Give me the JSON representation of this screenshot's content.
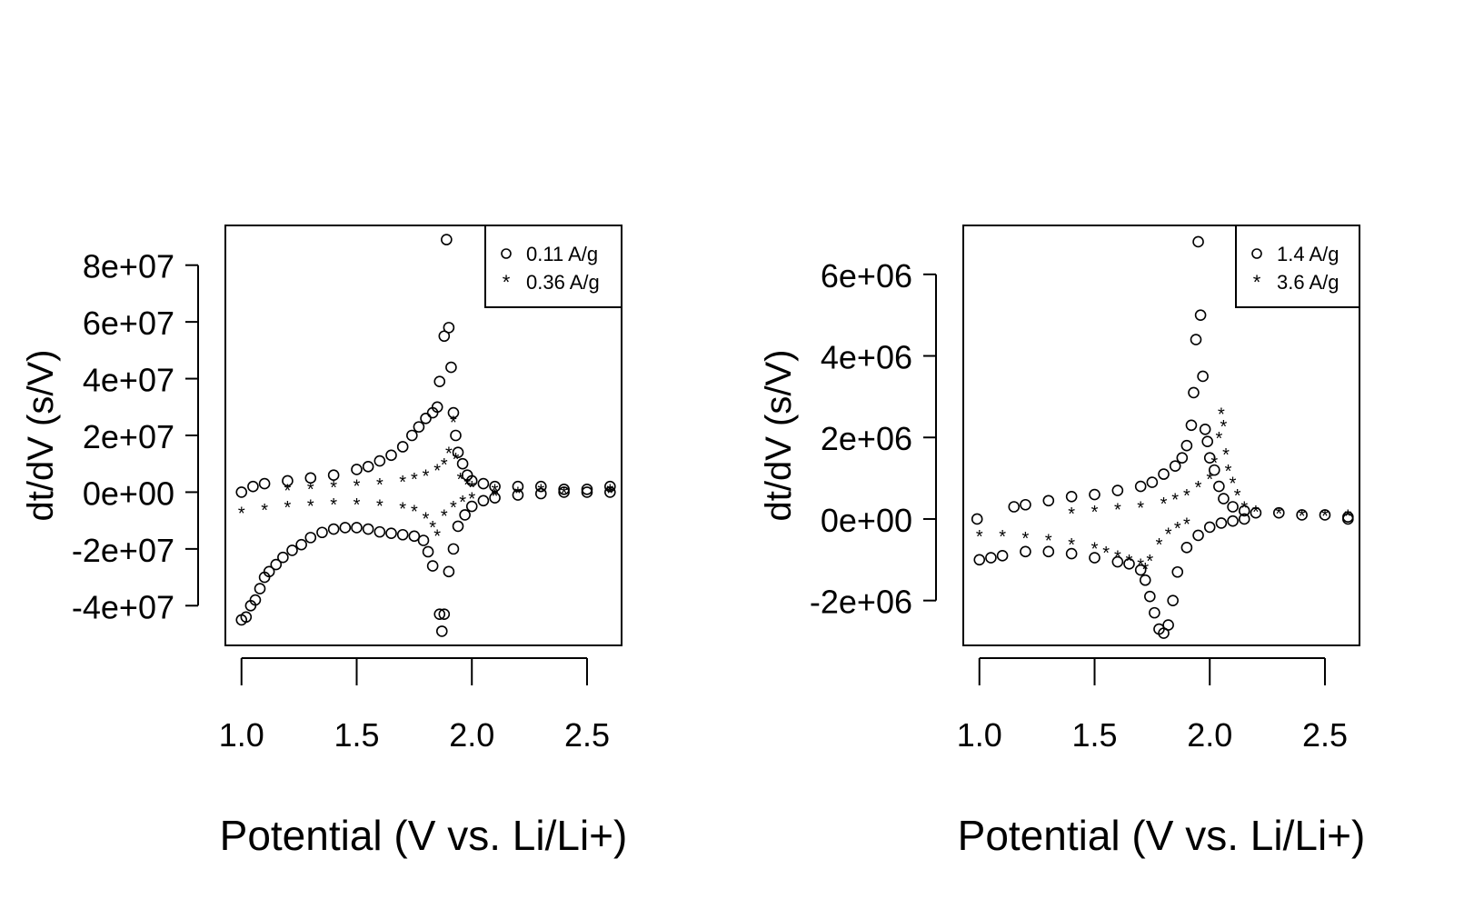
{
  "chart_data": [
    {
      "type": "scatter",
      "xlabel": "Potential (V vs. Li/Li+)",
      "ylabel": "dt/dV (s/V)",
      "xlim": [
        0.93,
        2.65
      ],
      "ylim": [
        -54000000.0,
        94000000.0
      ],
      "x_ticks": [
        1.0,
        1.5,
        2.0,
        2.5
      ],
      "x_tick_labels": [
        "1.0",
        "1.5",
        "2.0",
        "2.5"
      ],
      "y_ticks": [
        -40000000.0,
        -20000000.0,
        0,
        20000000.0,
        40000000.0,
        60000000.0,
        80000000.0
      ],
      "y_tick_labels": [
        "-4e+07",
        "-2e+07",
        "0e+00",
        "2e+07",
        "4e+07",
        "6e+07",
        "8e+07"
      ],
      "legend_position": "top-right",
      "series": [
        {
          "name": "0.11 A/g",
          "marker": "circle",
          "points": [
            [
              1.0,
              -45000000.0
            ],
            [
              1.02,
              -44000000.0
            ],
            [
              1.04,
              -40000000.0
            ],
            [
              1.06,
              -38000000.0
            ],
            [
              1.08,
              -34000000.0
            ],
            [
              1.1,
              -30000000.0
            ],
            [
              1.12,
              -28000000.0
            ],
            [
              1.15,
              -25500000.0
            ],
            [
              1.18,
              -23000000.0
            ],
            [
              1.22,
              -20500000.0
            ],
            [
              1.26,
              -18500000.0
            ],
            [
              1.3,
              -16000000.0
            ],
            [
              1.35,
              -14200000.0
            ],
            [
              1.4,
              -13000000.0
            ],
            [
              1.45,
              -12500000.0
            ],
            [
              1.5,
              -12500000.0
            ],
            [
              1.55,
              -13000000.0
            ],
            [
              1.6,
              -14000000.0
            ],
            [
              1.65,
              -14500000.0
            ],
            [
              1.7,
              -15000000.0
            ],
            [
              1.75,
              -15500000.0
            ],
            [
              1.79,
              -17000000.0
            ],
            [
              1.81,
              -21000000.0
            ],
            [
              1.83,
              -26000000.0
            ],
            [
              1.86,
              -43000000.0
            ],
            [
              1.87,
              -49000000.0
            ],
            [
              1.88,
              -43000000.0
            ],
            [
              1.9,
              -28000000.0
            ],
            [
              1.92,
              -20000000.0
            ],
            [
              1.94,
              -12000000.0
            ],
            [
              1.97,
              -8000000.0
            ],
            [
              2.0,
              -5000000.0
            ],
            [
              2.05,
              -3000000.0
            ],
            [
              2.1,
              -2000000.0
            ],
            [
              2.2,
              -1000000.0
            ],
            [
              2.3,
              -500000.0
            ],
            [
              2.4,
              0
            ],
            [
              2.5,
              0
            ],
            [
              2.6,
              0
            ],
            [
              1.0,
              0
            ],
            [
              1.05,
              2000000.0
            ],
            [
              1.1,
              3000000.0
            ],
            [
              1.2,
              4000000.0
            ],
            [
              1.3,
              5000000.0
            ],
            [
              1.4,
              6000000.0
            ],
            [
              1.5,
              8000000.0
            ],
            [
              1.55,
              9000000.0
            ],
            [
              1.6,
              11000000.0
            ],
            [
              1.65,
              13000000.0
            ],
            [
              1.7,
              16000000.0
            ],
            [
              1.74,
              20000000.0
            ],
            [
              1.77,
              23000000.0
            ],
            [
              1.8,
              26000000.0
            ],
            [
              1.83,
              28000000.0
            ],
            [
              1.85,
              30000000.0
            ],
            [
              1.86,
              39000000.0
            ],
            [
              1.88,
              55000000.0
            ],
            [
              1.89,
              89000000.0
            ],
            [
              1.9,
              58000000.0
            ],
            [
              1.91,
              44000000.0
            ],
            [
              1.92,
              28000000.0
            ],
            [
              1.93,
              20000000.0
            ],
            [
              1.94,
              14000000.0
            ],
            [
              1.96,
              10000000.0
            ],
            [
              1.98,
              6000000.0
            ],
            [
              2.0,
              4000000.0
            ],
            [
              2.05,
              3000000.0
            ],
            [
              2.1,
              2000000.0
            ],
            [
              2.2,
              2000000.0
            ],
            [
              2.3,
              2000000.0
            ],
            [
              2.4,
              1000000.0
            ],
            [
              2.5,
              1000000.0
            ],
            [
              2.6,
              2000000.0
            ]
          ]
        },
        {
          "name": "0.36 A/g",
          "marker": "star",
          "points": [
            [
              1.0,
              -7000000.0
            ],
            [
              1.1,
              -6000000.0
            ],
            [
              1.2,
              -5000000.0
            ],
            [
              1.3,
              -4500000.0
            ],
            [
              1.4,
              -4000000.0
            ],
            [
              1.5,
              -4000000.0
            ],
            [
              1.6,
              -4500000.0
            ],
            [
              1.7,
              -5500000.0
            ],
            [
              1.75,
              -6500000.0
            ],
            [
              1.8,
              -9000000.0
            ],
            [
              1.83,
              -12000000.0
            ],
            [
              1.85,
              -15000000.0
            ],
            [
              1.88,
              -8000000.0
            ],
            [
              1.92,
              -5000000.0
            ],
            [
              1.96,
              -3000000.0
            ],
            [
              2.0,
              -2000000.0
            ],
            [
              2.1,
              -1000000.0
            ],
            [
              2.2,
              0
            ],
            [
              2.4,
              0
            ],
            [
              2.6,
              0
            ],
            [
              1.2,
              1000000.0
            ],
            [
              1.3,
              1500000.0
            ],
            [
              1.4,
              2000000.0
            ],
            [
              1.5,
              2500000.0
            ],
            [
              1.6,
              3000000.0
            ],
            [
              1.7,
              4000000.0
            ],
            [
              1.75,
              5000000.0
            ],
            [
              1.8,
              6000000.0
            ],
            [
              1.85,
              8000000.0
            ],
            [
              1.88,
              10000000.0
            ],
            [
              1.9,
              14000000.0
            ],
            [
              1.92,
              25000000.0
            ],
            [
              1.93,
              12000000.0
            ],
            [
              1.95,
              5000000.0
            ],
            [
              1.98,
              3000000.0
            ],
            [
              2.0,
              2000000.0
            ],
            [
              2.1,
              1000000.0
            ],
            [
              2.3,
              1000000.0
            ],
            [
              2.6,
              1000000.0
            ]
          ]
        }
      ]
    },
    {
      "type": "scatter",
      "xlabel": "Potential (V vs. Li/Li+)",
      "ylabel": "dt/dV (s/V)",
      "xlim": [
        0.93,
        2.65
      ],
      "ylim": [
        -3100000.0,
        7200000.0
      ],
      "x_ticks": [
        1.0,
        1.5,
        2.0,
        2.5
      ],
      "x_tick_labels": [
        "1.0",
        "1.5",
        "2.0",
        "2.5"
      ],
      "y_ticks": [
        -2000000.0,
        0,
        2000000.0,
        4000000.0,
        6000000.0
      ],
      "y_tick_labels": [
        "-2e+06",
        "0e+00",
        "2e+06",
        "4e+06",
        "6e+06"
      ],
      "legend_position": "top-right",
      "series": [
        {
          "name": "1.4 A/g",
          "marker": "circle",
          "points": [
            [
              0.99,
              0
            ],
            [
              1.0,
              -1000000.0
            ],
            [
              1.05,
              -950000.0
            ],
            [
              1.1,
              -900000.0
            ],
            [
              1.2,
              -800000.0
            ],
            [
              1.3,
              -800000.0
            ],
            [
              1.4,
              -850000.0
            ],
            [
              1.5,
              -950000.0
            ],
            [
              1.6,
              -1050000.0
            ],
            [
              1.65,
              -1100000.0
            ],
            [
              1.7,
              -1250000.0
            ],
            [
              1.72,
              -1500000.0
            ],
            [
              1.74,
              -1900000.0
            ],
            [
              1.76,
              -2300000.0
            ],
            [
              1.78,
              -2700000.0
            ],
            [
              1.8,
              -2800000.0
            ],
            [
              1.82,
              -2600000.0
            ],
            [
              1.84,
              -2000000.0
            ],
            [
              1.86,
              -1300000.0
            ],
            [
              1.9,
              -700000.0
            ],
            [
              1.95,
              -400000.0
            ],
            [
              2.0,
              -200000.0
            ],
            [
              2.05,
              -100000.0
            ],
            [
              2.1,
              -50000.0
            ],
            [
              2.15,
              0
            ],
            [
              1.15,
              300000.0
            ],
            [
              1.2,
              350000.0
            ],
            [
              1.3,
              450000.0
            ],
            [
              1.4,
              550000.0
            ],
            [
              1.5,
              600000.0
            ],
            [
              1.6,
              700000.0
            ],
            [
              1.7,
              800000.0
            ],
            [
              1.75,
              900000.0
            ],
            [
              1.8,
              1100000.0
            ],
            [
              1.85,
              1300000.0
            ],
            [
              1.88,
              1500000.0
            ],
            [
              1.9,
              1800000.0
            ],
            [
              1.92,
              2300000.0
            ],
            [
              1.93,
              3100000.0
            ],
            [
              1.94,
              4400000.0
            ],
            [
              1.95,
              6800000.0
            ],
            [
              1.96,
              5000000.0
            ],
            [
              1.97,
              3500000.0
            ],
            [
              1.98,
              2200000.0
            ],
            [
              1.99,
              1900000.0
            ],
            [
              2.0,
              1500000.0
            ],
            [
              2.02,
              1200000.0
            ],
            [
              2.04,
              800000.0
            ],
            [
              2.06,
              500000.0
            ],
            [
              2.1,
              300000.0
            ],
            [
              2.15,
              200000.0
            ],
            [
              2.2,
              150000.0
            ],
            [
              2.3,
              150000.0
            ],
            [
              2.4,
              100000.0
            ],
            [
              2.5,
              100000.0
            ],
            [
              2.6,
              50000.0
            ],
            [
              2.6,
              0
            ]
          ]
        },
        {
          "name": "3.6 A/g",
          "marker": "star",
          "points": [
            [
              1.0,
              -400000.0
            ],
            [
              1.1,
              -400000.0
            ],
            [
              1.2,
              -450000.0
            ],
            [
              1.3,
              -500000.0
            ],
            [
              1.4,
              -600000.0
            ],
            [
              1.5,
              -700000.0
            ],
            [
              1.55,
              -800000.0
            ],
            [
              1.6,
              -900000.0
            ],
            [
              1.65,
              -1000000.0
            ],
            [
              1.7,
              -1100000.0
            ],
            [
              1.72,
              -1200000.0
            ],
            [
              1.74,
              -1000000.0
            ],
            [
              1.78,
              -600000.0
            ],
            [
              1.82,
              -350000.0
            ],
            [
              1.86,
              -200000.0
            ],
            [
              1.9,
              -100000.0
            ],
            [
              1.4,
              150000.0
            ],
            [
              1.5,
              200000.0
            ],
            [
              1.6,
              250000.0
            ],
            [
              1.7,
              300000.0
            ],
            [
              1.8,
              400000.0
            ],
            [
              1.85,
              500000.0
            ],
            [
              1.9,
              600000.0
            ],
            [
              1.95,
              800000.0
            ],
            [
              2.0,
              1000000.0
            ],
            [
              2.02,
              1400000.0
            ],
            [
              2.04,
              2000000.0
            ],
            [
              2.05,
              2600000.0
            ],
            [
              2.06,
              2300000.0
            ],
            [
              2.07,
              1600000.0
            ],
            [
              2.08,
              1200000.0
            ],
            [
              2.1,
              900000.0
            ],
            [
              2.12,
              600000.0
            ],
            [
              2.15,
              300000.0
            ],
            [
              2.2,
              200000.0
            ],
            [
              2.3,
              150000.0
            ],
            [
              2.4,
              100000.0
            ],
            [
              2.5,
              100000.0
            ],
            [
              2.6,
              100000.0
            ]
          ]
        }
      ]
    }
  ]
}
